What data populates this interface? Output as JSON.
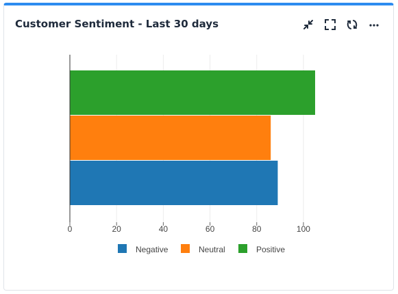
{
  "panel": {
    "title": "Customer Sentiment - Last 30 days",
    "icons": [
      "collapse-icon",
      "fullscreen-icon",
      "refresh-icon",
      "more-icon"
    ],
    "accent_color": "#2d8cf0"
  },
  "chart_data": {
    "type": "bar",
    "orientation": "horizontal",
    "title": "",
    "xlabel": "",
    "ylabel": "",
    "xlim": [
      0,
      105
    ],
    "x_ticks": [
      0,
      20,
      40,
      60,
      80,
      100
    ],
    "grid": true,
    "legend_position": "bottom",
    "series": [
      {
        "name": "Negative",
        "value": 89,
        "color": "#1f77b4"
      },
      {
        "name": "Neutral",
        "value": 86,
        "color": "#ff7f0e"
      },
      {
        "name": "Positive",
        "value": 105,
        "color": "#2ca02c"
      }
    ]
  }
}
